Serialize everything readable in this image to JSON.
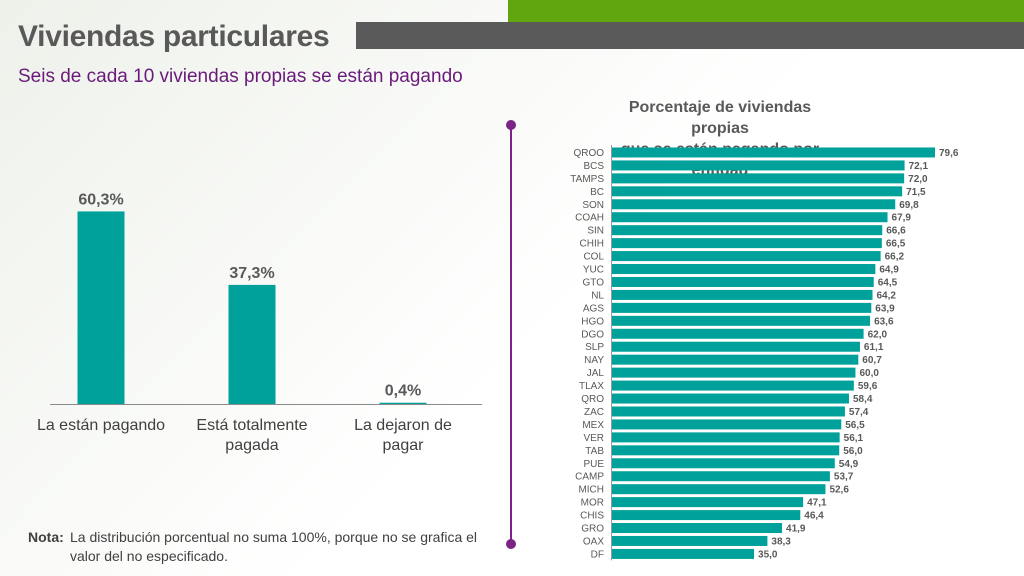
{
  "header": {
    "title": "Viviendas particulares",
    "subtitle": "Seis de cada 10 viviendas propias se están pagando"
  },
  "colors": {
    "bar": "#00a19a",
    "accent": "#7b2386",
    "green": "#62a60f",
    "dark_band": "#5a5a5a"
  },
  "chart_data": [
    {
      "type": "bar",
      "categories": [
        "La están pagando",
        "Está totalmente pagada",
        "La dejaron de pagar"
      ],
      "category_lines": [
        [
          "La están pagando"
        ],
        [
          "Está totalmente",
          "pagada"
        ],
        [
          "La dejaron de",
          "pagar"
        ]
      ],
      "values": [
        60.3,
        37.3,
        0.4
      ],
      "data_labels": [
        "60,3%",
        "37,3%",
        "0,4%"
      ],
      "ylim": [
        0,
        62
      ]
    },
    {
      "type": "bar",
      "orientation": "horizontal",
      "title": "Porcentaje de viviendas propias que se están pagando por entidad",
      "title_lines": [
        "Porcentaje de viviendas propias",
        "que se están pagando por entidad"
      ],
      "categories": [
        "QROO",
        "BCS",
        "TAMPS",
        "BC",
        "SON",
        "COAH",
        "SIN",
        "CHIH",
        "COL",
        "YUC",
        "GTO",
        "NL",
        "AGS",
        "HGO",
        "DGO",
        "SLP",
        "NAY",
        "JAL",
        "TLAX",
        "QRO",
        "ZAC",
        "MEX",
        "VER",
        "TAB",
        "PUE",
        "CAMP",
        "MICH",
        "MOR",
        "CHIS",
        "GRO",
        "OAX",
        "DF"
      ],
      "values": [
        79.6,
        72.1,
        72.0,
        71.5,
        69.8,
        67.9,
        66.6,
        66.5,
        66.2,
        64.9,
        64.5,
        64.2,
        63.9,
        63.6,
        62.0,
        61.1,
        60.7,
        60.0,
        59.6,
        58.4,
        57.4,
        56.5,
        56.1,
        56.0,
        54.9,
        53.7,
        52.6,
        47.1,
        46.4,
        41.9,
        38.3,
        35.0
      ],
      "data_labels": [
        "79,6",
        "72,1",
        "72,0",
        "71,5",
        "69,8",
        "67,9",
        "66,6",
        "66,5",
        "66,2",
        "64,9",
        "64,5",
        "64,2",
        "63,9",
        "63,6",
        "62,0",
        "61,1",
        "60,7",
        "60,0",
        "59,6",
        "58,4",
        "57,4",
        "56,5",
        "56,1",
        "56,0",
        "54,9",
        "53,7",
        "52,6",
        "47,1",
        "46,4",
        "41,9",
        "38,3",
        "35,0"
      ],
      "xlim": [
        0,
        79.6
      ]
    }
  ],
  "note": {
    "label": "Nota:",
    "text": "La distribución porcentual no suma 100%, porque no se grafica el valor del no especificado."
  }
}
